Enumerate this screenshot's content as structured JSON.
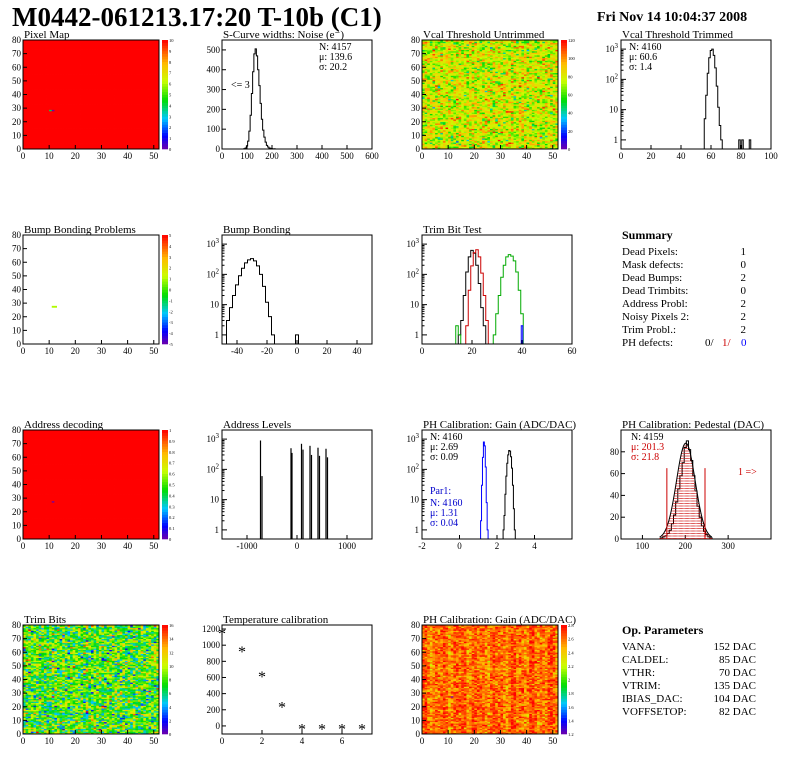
{
  "header": {
    "title": "M0442-061213.17:20 T-10b (C1)",
    "timestamp": "Fri Nov 14 10:04:37 2008"
  },
  "colors": {
    "trim0": "#000000",
    "trim1": "#cc0000",
    "trim2": "#00aa00",
    "trim3": "#0000ff",
    "fit": "#cc0000",
    "par1": "#0000cc"
  },
  "chart_data": [
    {
      "id": "pixel_map",
      "type": "heatmap",
      "title": "Pixel Map",
      "xlim": [
        0,
        52
      ],
      "ylim": [
        0,
        80
      ],
      "xticks": [
        0,
        10,
        20,
        30,
        40,
        50
      ],
      "yticks": [
        0,
        10,
        20,
        30,
        40,
        50,
        60,
        70,
        80
      ],
      "zlim": [
        0,
        10
      ],
      "zticks": [
        0,
        1,
        2,
        3,
        4,
        5,
        6,
        7,
        8,
        9,
        10
      ],
      "fill_value": 10,
      "special": [
        {
          "x": 11,
          "y": 28,
          "value": 0
        },
        {
          "x": 10,
          "y": 28,
          "value": 4
        }
      ]
    },
    {
      "id": "scurve_noise",
      "type": "histogram",
      "title": "S-Curve widths: Noise (e⁻)",
      "xlim": [
        0,
        600
      ],
      "ylim": [
        0,
        550
      ],
      "xticks": [
        0,
        100,
        200,
        300,
        400,
        500,
        600
      ],
      "yticks": [
        0,
        100,
        200,
        300,
        400,
        500
      ],
      "logy": false,
      "stats": {
        "N": "N: 4157",
        "mu": "μ: 139.6",
        "sigma": "σ: 20.2"
      },
      "annotation": "<= 3",
      "bins": [
        [
          90,
          2
        ],
        [
          95,
          5
        ],
        [
          100,
          15
        ],
        [
          105,
          40
        ],
        [
          110,
          90
        ],
        [
          115,
          170
        ],
        [
          120,
          280
        ],
        [
          125,
          390
        ],
        [
          130,
          480
        ],
        [
          135,
          505
        ],
        [
          140,
          470
        ],
        [
          145,
          400
        ],
        [
          150,
          320
        ],
        [
          155,
          230
        ],
        [
          160,
          150
        ],
        [
          165,
          95
        ],
        [
          170,
          60
        ],
        [
          175,
          35
        ],
        [
          180,
          18
        ],
        [
          185,
          10
        ],
        [
          190,
          5
        ],
        [
          195,
          3
        ],
        [
          200,
          2
        ],
        [
          210,
          1
        ]
      ]
    },
    {
      "id": "vcal_untrimmed",
      "type": "heatmap",
      "title": "Vcal Threshold Untrimmed",
      "xlim": [
        0,
        52
      ],
      "ylim": [
        0,
        80
      ],
      "xticks": [
        0,
        10,
        20,
        30,
        40,
        50
      ],
      "yticks": [
        0,
        10,
        20,
        30,
        40,
        50,
        60,
        70,
        80
      ],
      "zlim": [
        0,
        120
      ],
      "zticks": [
        0,
        20,
        40,
        60,
        80,
        100,
        120
      ],
      "mean": 78,
      "spread": 14
    },
    {
      "id": "vcal_trimmed",
      "type": "histogram",
      "title": "Vcal Threshold Trimmed",
      "xlim": [
        0,
        100
      ],
      "ylim": [
        0.5,
        2000
      ],
      "xticks": [
        0,
        20,
        40,
        60,
        80,
        100
      ],
      "logy": true,
      "stats": {
        "N": "N: 4160",
        "mu": "μ: 60.6",
        "sigma": "σ: 1.4"
      },
      "bins": [
        [
          56,
          5
        ],
        [
          57,
          30
        ],
        [
          58,
          160
        ],
        [
          59,
          520
        ],
        [
          60,
          900
        ],
        [
          61,
          1000
        ],
        [
          62,
          620
        ],
        [
          63,
          240
        ],
        [
          64,
          60
        ],
        [
          65,
          12
        ],
        [
          66,
          3
        ],
        [
          67,
          1
        ],
        [
          79,
          1
        ],
        [
          81,
          1
        ],
        [
          86,
          1
        ]
      ]
    },
    {
      "id": "bump_bonding_problems",
      "type": "heatmap",
      "title": "Bump Bonding Problems",
      "xlim": [
        0,
        52
      ],
      "ylim": [
        0,
        80
      ],
      "xticks": [
        0,
        10,
        20,
        30,
        40,
        50
      ],
      "yticks": [
        0,
        10,
        20,
        30,
        40,
        50,
        60,
        70,
        80
      ],
      "zlim": [
        -5,
        5
      ],
      "zticks": [
        -5,
        -4,
        -3,
        -2,
        -1,
        0,
        1,
        2,
        3,
        4,
        5
      ],
      "fill_value": null,
      "special": [
        {
          "x": 11,
          "y": 27,
          "value": 1
        }
      ]
    },
    {
      "id": "bump_bonding",
      "type": "histogram",
      "title": "Bump Bonding",
      "xlim": [
        -50,
        50
      ],
      "ylim": [
        0.5,
        2000
      ],
      "xticks": [
        -40,
        -20,
        0,
        20,
        40
      ],
      "logy": true,
      "bins": [
        [
          -46,
          3
        ],
        [
          -44,
          8
        ],
        [
          -42,
          20
        ],
        [
          -40,
          45
        ],
        [
          -38,
          90
        ],
        [
          -36,
          160
        ],
        [
          -34,
          240
        ],
        [
          -32,
          300
        ],
        [
          -30,
          330
        ],
        [
          -28,
          280
        ],
        [
          -26,
          190
        ],
        [
          -24,
          100
        ],
        [
          -22,
          40
        ],
        [
          -20,
          12
        ],
        [
          -18,
          4
        ],
        [
          -16,
          1
        ],
        [
          0,
          1
        ]
      ]
    },
    {
      "id": "trim_bit_test",
      "type": "histogram",
      "title": "Trim Bit Test",
      "xlim": [
        0,
        60
      ],
      "ylim": [
        0.5,
        2000
      ],
      "xticks": [
        0,
        20,
        40,
        60
      ],
      "logy": true,
      "series": [
        {
          "color": "trim0",
          "bins": [
            [
              15,
              1
            ],
            [
              16,
              3
            ],
            [
              17,
              20
            ],
            [
              18,
              120
            ],
            [
              19,
              380
            ],
            [
              20,
              620
            ],
            [
              21,
              500
            ],
            [
              22,
              200
            ],
            [
              23,
              50
            ],
            [
              24,
              8
            ],
            [
              25,
              2
            ]
          ]
        },
        {
          "color": "trim1",
          "bins": [
            [
              18,
              2
            ],
            [
              19,
              30
            ],
            [
              20,
              190
            ],
            [
              21,
              520
            ],
            [
              22,
              650
            ],
            [
              23,
              380
            ],
            [
              24,
              110
            ],
            [
              25,
              20
            ],
            [
              26,
              3
            ]
          ]
        },
        {
          "color": "trim2",
          "bins": [
            [
              14,
              2
            ],
            [
              15,
              1
            ],
            [
              29,
              1
            ],
            [
              30,
              5
            ],
            [
              31,
              20
            ],
            [
              32,
              80
            ],
            [
              33,
              200
            ],
            [
              34,
              380
            ],
            [
              35,
              450
            ],
            [
              36,
              400
            ],
            [
              37,
              280
            ],
            [
              38,
              120
            ],
            [
              39,
              30
            ],
            [
              40,
              5
            ]
          ]
        },
        {
          "color": "trim3",
          "bins": [
            [
              40,
              2
            ]
          ]
        }
      ]
    },
    {
      "id": "address_decoding",
      "type": "heatmap",
      "title": "Address decoding",
      "xlim": [
        0,
        52
      ],
      "ylim": [
        0,
        80
      ],
      "xticks": [
        0,
        10,
        20,
        30,
        40,
        50
      ],
      "yticks": [
        0,
        10,
        20,
        30,
        40,
        50,
        60,
        70,
        80
      ],
      "zlim": [
        0,
        1
      ],
      "zticks": [
        0,
        0.1,
        0.2,
        0.3,
        0.4,
        0.5,
        0.6,
        0.7,
        0.8,
        0.9,
        1
      ],
      "fill_value": 1,
      "special": [
        {
          "x": 11,
          "y": 27,
          "value": 0
        }
      ]
    },
    {
      "id": "address_levels",
      "type": "histogram",
      "title": "Address Levels",
      "xlim": [
        -1500,
        1500
      ],
      "ylim": [
        0.5,
        2000
      ],
      "xticks": [
        -1000,
        0,
        1000
      ],
      "logy": true,
      "spikes": [
        [
          -730,
          900
        ],
        [
          -700,
          60
        ],
        [
          -120,
          500
        ],
        [
          -100,
          350
        ],
        [
          90,
          700
        ],
        [
          120,
          450
        ],
        [
          260,
          600
        ],
        [
          290,
          300
        ],
        [
          420,
          520
        ],
        [
          450,
          280
        ],
        [
          580,
          480
        ],
        [
          610,
          250
        ]
      ]
    },
    {
      "id": "ph_gain",
      "type": "histogram",
      "title": "PH Calibration: Gain (ADC/DAC)",
      "xlim": [
        -2,
        6
      ],
      "ylim": [
        0.5,
        2000
      ],
      "xticks": [
        -2,
        0,
        2,
        4
      ],
      "logy": true,
      "stats": {
        "N": "N: 4160",
        "mu": "μ: 2.69",
        "sigma": "σ: 0.09"
      },
      "par_label": "Par1:",
      "par_stats": {
        "N": "N: 4160",
        "mu": "μ: 1.31",
        "sigma": "σ: 0.04"
      },
      "series": [
        {
          "color": "trim0",
          "bins": [
            [
              2.35,
              1
            ],
            [
              2.4,
              3
            ],
            [
              2.45,
              15
            ],
            [
              2.5,
              60
            ],
            [
              2.55,
              160
            ],
            [
              2.6,
              300
            ],
            [
              2.65,
              420
            ],
            [
              2.7,
              400
            ],
            [
              2.75,
              260
            ],
            [
              2.8,
              110
            ],
            [
              2.85,
              30
            ],
            [
              2.9,
              5
            ],
            [
              2.95,
              1
            ]
          ]
        },
        {
          "color": "trim3",
          "bins": [
            [
              1.15,
              2
            ],
            [
              1.2,
              30
            ],
            [
              1.25,
              250
            ],
            [
              1.3,
              800
            ],
            [
              1.35,
              600
            ],
            [
              1.4,
              120
            ],
            [
              1.45,
              8
            ],
            [
              1.5,
              1
            ]
          ]
        }
      ]
    },
    {
      "id": "ph_pedestal",
      "type": "histogram",
      "title": "PH Calibration: Pedestal (DAC)",
      "xlim": [
        50,
        400
      ],
      "ylim": [
        0,
        100
      ],
      "xticks": [
        100,
        200,
        300
      ],
      "yticks": [
        0,
        20,
        40,
        60,
        80
      ],
      "logy": false,
      "stats": {
        "N": "N: 4159",
        "mu": "μ: 201.3",
        "sigma": "σ: 21.8"
      },
      "annotation": "1 =>",
      "bins": [
        [
          145,
          1
        ],
        [
          150,
          2
        ],
        [
          155,
          3
        ],
        [
          160,
          5
        ],
        [
          165,
          8
        ],
        [
          170,
          14
        ],
        [
          175,
          22
        ],
        [
          180,
          34
        ],
        [
          185,
          46
        ],
        [
          190,
          58
        ],
        [
          195,
          70
        ],
        [
          200,
          84
        ],
        [
          205,
          90
        ],
        [
          210,
          82
        ],
        [
          215,
          72
        ],
        [
          220,
          58
        ],
        [
          225,
          44
        ],
        [
          230,
          30
        ],
        [
          235,
          20
        ],
        [
          240,
          12
        ],
        [
          245,
          7
        ],
        [
          250,
          4
        ],
        [
          255,
          2
        ],
        [
          260,
          1
        ]
      ]
    },
    {
      "id": "trim_bits",
      "type": "heatmap",
      "title": "Trim Bits",
      "xlim": [
        0,
        52
      ],
      "ylim": [
        0,
        80
      ],
      "xticks": [
        0,
        10,
        20,
        30,
        40,
        50
      ],
      "yticks": [
        0,
        10,
        20,
        30,
        40,
        50,
        60,
        70,
        80
      ],
      "zlim": [
        0,
        16
      ],
      "zticks": [
        0,
        2,
        4,
        6,
        8,
        10,
        12,
        14,
        16
      ],
      "mean": 8,
      "spread": 2.5,
      "special": [
        {
          "x": 11,
          "y": 27,
          "value": 16
        }
      ]
    },
    {
      "id": "temperature_calibration",
      "type": "scatter",
      "title": "Temperature calibration",
      "xlim": [
        0,
        7.5
      ],
      "ylim": [
        -100,
        1250
      ],
      "xticks": [
        0,
        2,
        4,
        6
      ],
      "yticks": [
        0,
        200,
        400,
        600,
        800,
        1000,
        1200
      ],
      "marker": "*",
      "x": [
        0,
        1,
        2,
        3,
        4,
        5,
        6,
        7
      ],
      "y": [
        1150,
        930,
        620,
        240,
        -30,
        -30,
        -30,
        -30
      ]
    },
    {
      "id": "ph_gain_map",
      "type": "heatmap",
      "title": "PH Calibration: Gain (ADC/DAC)",
      "xlim": [
        0,
        52
      ],
      "ylim": [
        0,
        80
      ],
      "xticks": [
        0,
        10,
        20,
        30,
        40,
        50
      ],
      "yticks": [
        0,
        10,
        20,
        30,
        40,
        50,
        60,
        70,
        80
      ],
      "zlim": [
        1.2,
        2.8
      ],
      "zticks": [
        1.2,
        1.4,
        1.6,
        1.8,
        2,
        2.2,
        2.4,
        2.6,
        2.8
      ],
      "mean": 2.6,
      "spread": 0.12,
      "columnar": true,
      "special": [
        {
          "x": 11,
          "y": 27,
          "value": 1.2
        }
      ]
    }
  ],
  "summary": {
    "title": "Summary",
    "rows": [
      {
        "label": "Dead Pixels:",
        "value": "1"
      },
      {
        "label": "Mask defects:",
        "value": "0"
      },
      {
        "label": "Dead Bumps:",
        "value": "2"
      },
      {
        "label": "Dead Trimbits:",
        "value": "0"
      },
      {
        "label": "Address Probl:",
        "value": "2"
      },
      {
        "label": "Noisy Pixels 2:",
        "value": "2"
      },
      {
        "label": "Trim Probl.:",
        "value": "2"
      }
    ],
    "ph_label": "PH defects:",
    "ph_values": [
      "0/",
      "1/",
      "0"
    ]
  },
  "op_params": {
    "title": "Op. Parameters",
    "rows": [
      {
        "label": "VANA:",
        "value": "152 DAC"
      },
      {
        "label": "CALDEL:",
        "value": "85 DAC"
      },
      {
        "label": "VTHR:",
        "value": "70 DAC"
      },
      {
        "label": "VTRIM:",
        "value": "135 DAC"
      },
      {
        "label": "IBIAS_DAC:",
        "value": "104 DAC"
      },
      {
        "label": "VOFFSETOP:",
        "value": "82 DAC"
      }
    ]
  }
}
